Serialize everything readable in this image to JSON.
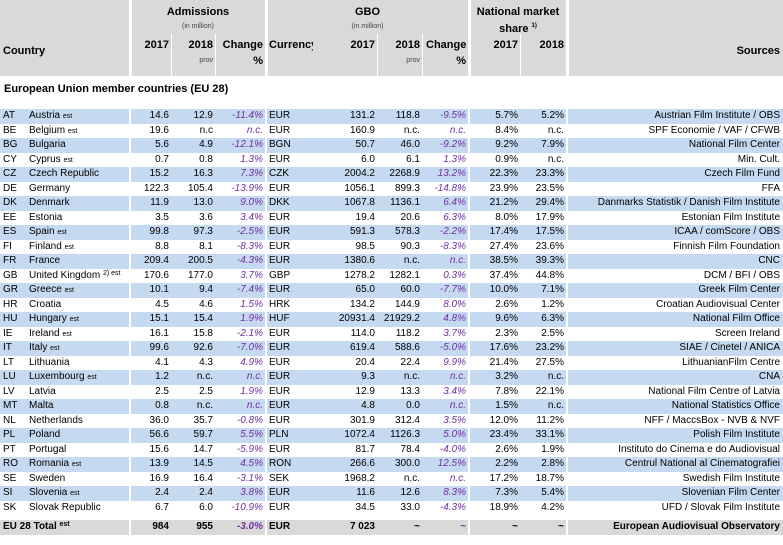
{
  "header": {
    "country": "Country",
    "admissions": "Admissions",
    "admissions_unit": "(in million)",
    "gbo": "GBO",
    "gbo_unit": "(in million)",
    "market_share": "National market",
    "market_share_2": "share",
    "market_share_note": "1)",
    "year_2017": "2017",
    "year_2018": "2018",
    "prov": "prov",
    "change": "Change",
    "percent": "%",
    "currency": "Currency",
    "sources": "Sources"
  },
  "section_title": "European Union member countries (EU 28)",
  "rows": [
    {
      "code": "AT",
      "country": "Austria",
      "note": "est",
      "cells": [
        "14.6",
        "12.9",
        "-11.4%",
        "EUR",
        "131.2",
        "118.8",
        "-9.5%",
        "5.7%",
        "5.2%",
        "Austrian Film Institute / OBS"
      ]
    },
    {
      "code": "BE",
      "country": "Belgium",
      "note": "est",
      "cells": [
        "19.6",
        "n.c",
        "n.c.",
        "EUR",
        "160.9",
        "n.c.",
        "n.c.",
        "8.4%",
        "n.c.",
        "SPF Economie / VAF / CFWB"
      ]
    },
    {
      "code": "BG",
      "country": "Bulgaria",
      "note": null,
      "cells": [
        "5.6",
        "4.9",
        "-12.1%",
        "BGN",
        "50.7",
        "46.0",
        "-9.2%",
        "9.2%",
        "7.9%",
        "National Film Center"
      ]
    },
    {
      "code": "CY",
      "country": "Cyprus",
      "note": "est",
      "cells": [
        "0.7",
        "0.8",
        "1.3%",
        "EUR",
        "6.0",
        "6.1",
        "1.3%",
        "0.9%",
        "n.c.",
        "Min. Cult."
      ]
    },
    {
      "code": "CZ",
      "country": "Czech Republic",
      "note": null,
      "cells": [
        "15.2",
        "16.3",
        "7.3%",
        "CZK",
        "2004.2",
        "2268.9",
        "13.2%",
        "22.3%",
        "23.3%",
        "Czech Film Fund"
      ]
    },
    {
      "code": "DE",
      "country": "Germany",
      "note": null,
      "cells": [
        "122.3",
        "105.4",
        "-13.9%",
        "EUR",
        "1056.1",
        "899.3",
        "-14.8%",
        "23.9%",
        "23.5%",
        "FFA"
      ]
    },
    {
      "code": "DK",
      "country": "Denmark",
      "note": null,
      "cells": [
        "11.9",
        "13.0",
        "9.0%",
        "DKK",
        "1067.8",
        "1136.1",
        "6.4%",
        "21.2%",
        "29.4%",
        "Danmarks Statistik / Danish Film Institute"
      ]
    },
    {
      "code": "EE",
      "country": "Estonia",
      "note": null,
      "cells": [
        "3.5",
        "3.6",
        "3.4%",
        "EUR",
        "19.4",
        "20.6",
        "6.3%",
        "8.0%",
        "17.9%",
        "Estonian Film Institute"
      ]
    },
    {
      "code": "ES",
      "country": "Spain",
      "note": "est",
      "cells": [
        "99.8",
        "97.3",
        "-2.5%",
        "EUR",
        "591.3",
        "578.3",
        "-2.2%",
        "17.4%",
        "17.5%",
        "ICAA / comScore / OBS"
      ]
    },
    {
      "code": "FI",
      "country": "Finland",
      "note": "est",
      "cells": [
        "8.8",
        "8.1",
        "-8.3%",
        "EUR",
        "98.5",
        "90.3",
        "-8.3%",
        "27.4%",
        "23.6%",
        "Finnish Film Foundation"
      ]
    },
    {
      "code": "FR",
      "country": "France",
      "note": null,
      "cells": [
        "209.4",
        "200.5",
        "-4.3%",
        "EUR",
        "1380.6",
        "n.c.",
        "n.c.",
        "38.5%",
        "39.3%",
        "CNC"
      ]
    },
    {
      "code": "GB",
      "country": "United Kingdom",
      "note": "2) est",
      "cells": [
        "170.6",
        "177.0",
        "3.7%",
        "GBP",
        "1278.2",
        "1282.1",
        "0.3%",
        "37.4%",
        "44.8%",
        "DCM / BFI / OBS"
      ]
    },
    {
      "code": "GR",
      "country": "Greece",
      "note": "est",
      "cells": [
        "10.1",
        "9.4",
        "-7.4%",
        "EUR",
        "65.0",
        "60.0",
        "-7.7%",
        "10.0%",
        "7.1%",
        "Greek Film Center"
      ]
    },
    {
      "code": "HR",
      "country": "Croatia",
      "note": null,
      "cells": [
        "4.5",
        "4.6",
        "1.5%",
        "HRK",
        "134.2",
        "144.9",
        "8.0%",
        "2.6%",
        "1.2%",
        "Croatian Audiovisual Center"
      ]
    },
    {
      "code": "HU",
      "country": "Hungary",
      "note": "est",
      "cells": [
        "15.1",
        "15.4",
        "1.9%",
        "HUF",
        "20931.4",
        "21929.2",
        "4.8%",
        "9.6%",
        "6.3%",
        "National Film Office"
      ]
    },
    {
      "code": "IE",
      "country": "Ireland",
      "note": "est",
      "cells": [
        "16.1",
        "15.8",
        "-2.1%",
        "EUR",
        "114.0",
        "118.2",
        "3.7%",
        "2.3%",
        "2.5%",
        "Screen Ireland"
      ]
    },
    {
      "code": "IT",
      "country": "Italy",
      "note": "est",
      "cells": [
        "99.6",
        "92.6",
        "-7.0%",
        "EUR",
        "619.4",
        "588.6",
        "-5.0%",
        "17.6%",
        "23.2%",
        "SIAE / Cinetel / ANICA"
      ]
    },
    {
      "code": "LT",
      "country": "Lithuania",
      "note": null,
      "cells": [
        "4.1",
        "4.3",
        "4.9%",
        "EUR",
        "20.4",
        "22.4",
        "9.9%",
        "21.4%",
        "27.5%",
        "LithuanianFilm Centre"
      ]
    },
    {
      "code": "LU",
      "country": "Luxembourg",
      "note": "est",
      "cells": [
        "1.2",
        "n.c.",
        "n.c.",
        "EUR",
        "9.3",
        "n.c.",
        "n.c.",
        "3.2%",
        "n.c.",
        "CNA"
      ]
    },
    {
      "code": "LV",
      "country": "Latvia",
      "note": null,
      "cells": [
        "2.5",
        "2.5",
        "1.9%",
        "EUR",
        "12.9",
        "13.3",
        "3.4%",
        "7.8%",
        "22.1%",
        "National Film Centre of Latvia"
      ]
    },
    {
      "code": "MT",
      "country": "Malta",
      "note": null,
      "cells": [
        "0.8",
        "n.c.",
        "n.c.",
        "EUR",
        "4.8",
        "0.0",
        "n.c.",
        "1.5%",
        "n.c.",
        "National Statistics Office"
      ]
    },
    {
      "code": "NL",
      "country": "Netherlands",
      "note": null,
      "cells": [
        "36.0",
        "35.7",
        "-0.8%",
        "EUR",
        "301.9",
        "312.4",
        "3.5%",
        "12.0%",
        "11.2%",
        "NFF / MaccsBox - NVB & NVF"
      ]
    },
    {
      "code": "PL",
      "country": "Poland",
      "note": null,
      "cells": [
        "56.6",
        "59.7",
        "5.5%",
        "PLN",
        "1072.4",
        "1126.3",
        "5.0%",
        "23.4%",
        "33.1%",
        "Polish Film Institute"
      ]
    },
    {
      "code": "PT",
      "country": "Portugal",
      "note": null,
      "cells": [
        "15.6",
        "14.7",
        "-5.9%",
        "EUR",
        "81.7",
        "78.4",
        "-4.0%",
        "2.6%",
        "1.9%",
        "Instituto do Cinema e do Audiovisual"
      ]
    },
    {
      "code": "RO",
      "country": "Romania",
      "note": "est",
      "cells": [
        "13.9",
        "14.5",
        "4.5%",
        "RON",
        "266.6",
        "300.0",
        "12.5%",
        "2.2%",
        "2.8%",
        "Centrul National al Cinematografiei"
      ]
    },
    {
      "code": "SE",
      "country": "Sweden",
      "note": null,
      "cells": [
        "16.9",
        "16.4",
        "-3.1%",
        "SEK",
        "1968.2",
        "n.c.",
        "n.c.",
        "17.2%",
        "18.7%",
        "Swedish Film Institute"
      ]
    },
    {
      "code": "SI",
      "country": "Slovenia",
      "note": "est",
      "cells": [
        "2.4",
        "2.4",
        "3.8%",
        "EUR",
        "11.6",
        "12.6",
        "8.3%",
        "7.3%",
        "5.4%",
        "Slovenian Film Center"
      ]
    },
    {
      "code": "SK",
      "country": "Slovak Republic",
      "note": null,
      "cells": [
        "6.7",
        "6.0",
        "-10.9%",
        "EUR",
        "34.5",
        "33.0",
        "-4.3%",
        "18.9%",
        "4.2%",
        "UFD / Slovak Film Institute"
      ]
    }
  ],
  "total": {
    "label": "EU 28 Total",
    "note": "est",
    "cells": [
      "984",
      "955",
      "-3.0%",
      "EUR",
      "7 023",
      "~",
      "~",
      "~",
      "~",
      "European Audiovisual Observatory"
    ]
  }
}
